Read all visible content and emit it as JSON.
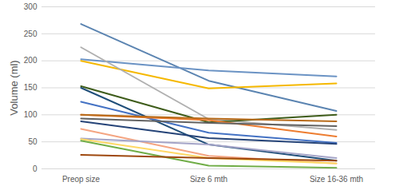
{
  "chart_data": {
    "type": "line",
    "categories": [
      "Preop size",
      "Size 6 mth",
      "Size 16-36 mth"
    ],
    "y_label": "Volume (ml)",
    "ylim": [
      0,
      300
    ],
    "yticks": [
      0,
      50,
      100,
      150,
      200,
      250,
      300
    ],
    "grid": true,
    "series": [
      {
        "color": "#5b84b1",
        "values": [
          268,
          163,
          107
        ]
      },
      {
        "color": "#6b93c4",
        "values": [
          203,
          182,
          171
        ]
      },
      {
        "color": "#f5b800",
        "values": [
          200,
          149,
          158
        ]
      },
      {
        "color": "#b0b0b0",
        "values": [
          225,
          92,
          72
        ]
      },
      {
        "color": "#3e5c1a",
        "values": [
          153,
          86,
          100
        ]
      },
      {
        "color": "#1f4e79",
        "values": [
          150,
          45,
          15
        ]
      },
      {
        "color": "#4472c4",
        "values": [
          124,
          67,
          48
        ]
      },
      {
        "color": "#ed7d31",
        "values": [
          100,
          90,
          60
        ]
      },
      {
        "color": "#b86b1a",
        "values": [
          100,
          93,
          88
        ]
      },
      {
        "color": "#636363",
        "values": [
          93,
          85,
          79
        ]
      },
      {
        "color": "#264478",
        "values": [
          88,
          57,
          46
        ]
      },
      {
        "color": "#f4a582",
        "values": [
          74,
          24,
          10
        ]
      },
      {
        "color": "#a5a5c8",
        "values": [
          56,
          45,
          20
        ]
      },
      {
        "color": "#ffd966",
        "values": [
          55,
          20,
          10
        ]
      },
      {
        "color": "#70ad47",
        "values": [
          52,
          6,
          2
        ]
      },
      {
        "color": "#9e480e",
        "values": [
          26,
          20,
          15
        ]
      }
    ]
  }
}
